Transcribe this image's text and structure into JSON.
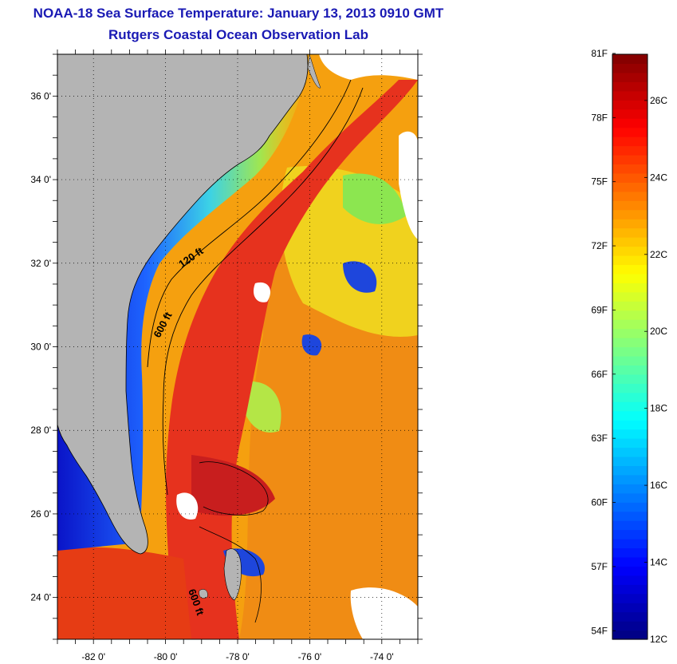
{
  "title": {
    "line1": "NOAA-18 Sea Surface Temperature:  January 13, 2013 0910 GMT",
    "line2": "Rutgers Coastal Ocean Observation Lab"
  },
  "map": {
    "lon_range": [
      -83,
      -73
    ],
    "lat_range": [
      23,
      37
    ],
    "y_ticks": [
      {
        "lat": 36,
        "label": "36 0'"
      },
      {
        "lat": 34,
        "label": "34 0'"
      },
      {
        "lat": 32,
        "label": "32 0'"
      },
      {
        "lat": 30,
        "label": "30 0'"
      },
      {
        "lat": 28,
        "label": "28 0'"
      },
      {
        "lat": 26,
        "label": "26 0'"
      },
      {
        "lat": 24,
        "label": "24 0'"
      }
    ],
    "x_ticks": [
      {
        "lon": -82,
        "label": "-82 0'"
      },
      {
        "lon": -80,
        "label": "-80 0'"
      },
      {
        "lon": -78,
        "label": "-78 0'"
      },
      {
        "lon": -76,
        "label": "-76 0'"
      },
      {
        "lon": -74,
        "label": "-74 0'"
      }
    ],
    "isobath_labels": [
      "120 ft",
      "600 ft",
      "600 ft"
    ],
    "land_color": "#b4b4b4",
    "ocean_warm_color": "#e63c14"
  },
  "colorbar": {
    "scale": "jet",
    "celsius_range": [
      12,
      27.2
    ],
    "fahrenheit_labels": [
      "81F",
      "78F",
      "75F",
      "72F",
      "69F",
      "66F",
      "63F",
      "60F",
      "57F",
      "54F"
    ],
    "celsius_labels": [
      "26C",
      "24C",
      "22C",
      "20C",
      "18C",
      "16C",
      "14C",
      "12C"
    ]
  }
}
